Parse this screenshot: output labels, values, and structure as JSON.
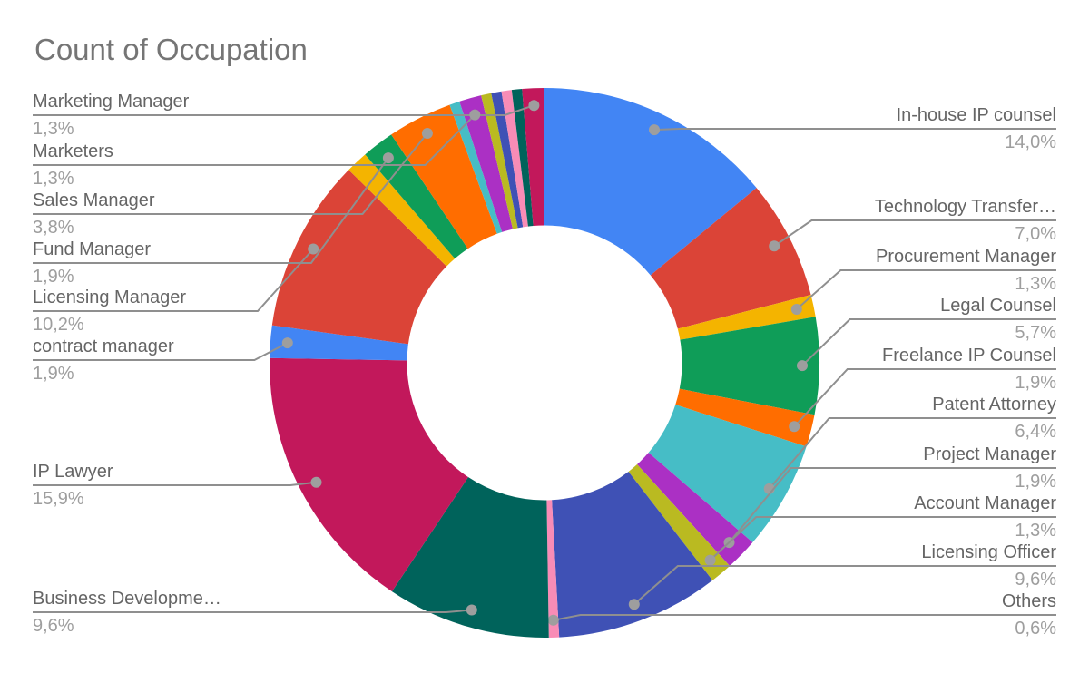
{
  "title": "Count of Occupation",
  "chart_data": {
    "type": "pie",
    "subtype": "donut",
    "title": "Count of Occupation",
    "donut_hole_ratio": 0.5,
    "percent_decimal_separator": ",",
    "legend_position": "labeled-callouts",
    "background": "#FFFFFF",
    "styles": {
      "title_color": "#757575",
      "label_color": "#656565",
      "percent_color": "#9E9E9E",
      "leader_line_color": "#8F8F8F",
      "anchor_dot_color": "#9E9E9E"
    },
    "slices": [
      {
        "label": "In-house IP counsel",
        "pct": 14.0,
        "pct_label": "14,0%",
        "color": "#4285F4",
        "labeled": true
      },
      {
        "label": "Technology Transfer…",
        "pct": 7.0,
        "pct_label": "7,0%",
        "color": "#DB4437",
        "labeled": true
      },
      {
        "label": "Procurement Manager",
        "pct": 1.3,
        "pct_label": "1,3%",
        "color": "#F4B400",
        "labeled": true
      },
      {
        "label": "Legal Counsel",
        "pct": 5.7,
        "pct_label": "5,7%",
        "color": "#0F9D58",
        "labeled": true
      },
      {
        "label": "Freelance IP Counsel",
        "pct": 1.9,
        "pct_label": "1,9%",
        "color": "#FF6D00",
        "labeled": true
      },
      {
        "label": "Patent Attorney",
        "pct": 6.4,
        "pct_label": "6,4%",
        "color": "#46BDC6",
        "labeled": true
      },
      {
        "label": "Project Manager",
        "pct": 1.9,
        "pct_label": "1,9%",
        "color": "#AB30C4",
        "labeled": true
      },
      {
        "label": "Account Manager",
        "pct": 1.3,
        "pct_label": "1,3%",
        "color": "#BABA21",
        "labeled": true
      },
      {
        "label": "Licensing Officer",
        "pct": 9.6,
        "pct_label": "9,6%",
        "color": "#3F51B5",
        "labeled": true
      },
      {
        "label": "Others",
        "pct": 0.6,
        "pct_label": "0,6%",
        "color": "#F88CB6",
        "labeled": true
      },
      {
        "label": "Business Developme…",
        "pct": 9.6,
        "pct_label": "9,6%",
        "color": "#00635B",
        "labeled": true
      },
      {
        "label": "IP Lawyer",
        "pct": 15.9,
        "pct_label": "15,9%",
        "color": "#C2185B",
        "labeled": true
      },
      {
        "label": "contract manager",
        "pct": 1.9,
        "pct_label": "1,9%",
        "color": "#4285F4",
        "labeled": true
      },
      {
        "label": "Licensing Manager",
        "pct": 10.2,
        "pct_label": "10,2%",
        "color": "#DB4437",
        "labeled": true
      },
      {
        "label": "",
        "pct": 1.3,
        "pct_label": "",
        "color": "#F4B400",
        "labeled": false
      },
      {
        "label": "Fund Manager",
        "pct": 1.9,
        "pct_label": "1,9%",
        "color": "#0F9D58",
        "labeled": true
      },
      {
        "label": "Sales Manager",
        "pct": 3.8,
        "pct_label": "3,8%",
        "color": "#FF6D00",
        "labeled": true
      },
      {
        "label": "",
        "pct": 0.6,
        "pct_label": "",
        "color": "#46BDC6",
        "labeled": false
      },
      {
        "label": "Marketers",
        "pct": 1.3,
        "pct_label": "1,3%",
        "color": "#AB30C4",
        "labeled": true
      },
      {
        "label": "",
        "pct": 0.6,
        "pct_label": "",
        "color": "#BABA21",
        "labeled": false
      },
      {
        "label": "",
        "pct": 0.6,
        "pct_label": "",
        "color": "#3F51B5",
        "labeled": false
      },
      {
        "label": "",
        "pct": 0.6,
        "pct_label": "",
        "color": "#F88CB6",
        "labeled": false
      },
      {
        "label": "",
        "pct": 0.6,
        "pct_label": "",
        "color": "#00635B",
        "labeled": false
      },
      {
        "label": "Marketing Manager",
        "pct": 1.3,
        "pct_label": "1,3%",
        "color": "#C2185B",
        "labeled": true
      }
    ]
  }
}
